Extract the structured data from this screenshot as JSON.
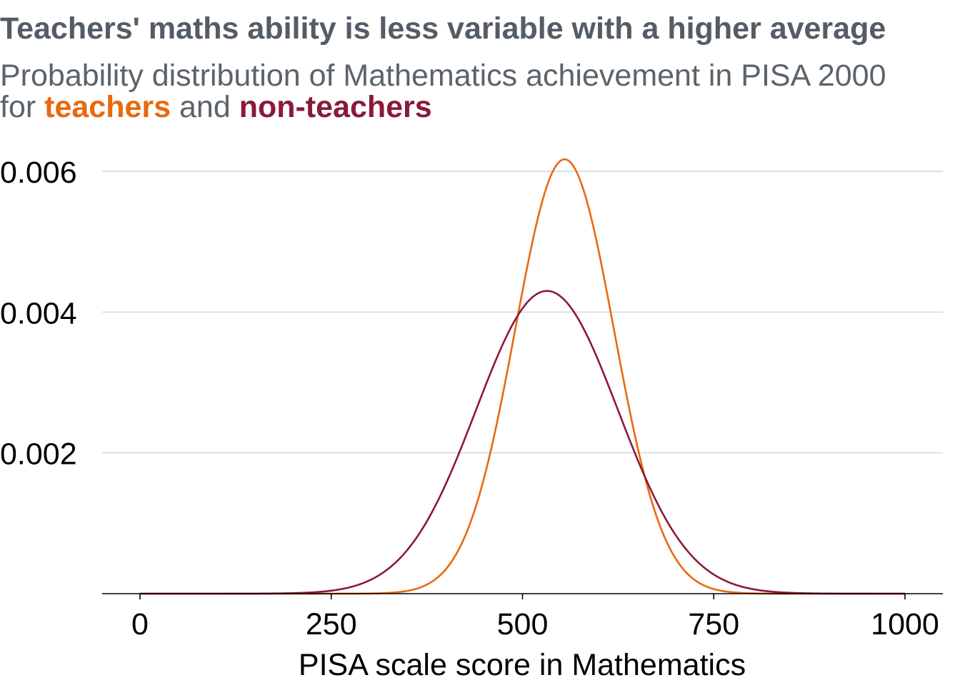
{
  "header": {
    "title": "Teachers' maths ability is less variable with a higher average",
    "subtitle_line1": "Probability distribution of Mathematics achievement in PISA 2000",
    "subtitle_pre": "for ",
    "subtitle_mid": " and ",
    "teachers_label": "teachers",
    "nonteachers_label": "non-teachers"
  },
  "colors": {
    "teachers": "#e8690e",
    "non_teachers": "#8b1a38",
    "grid": "#cccccc",
    "axis": "#000000"
  },
  "chart_data": {
    "type": "line",
    "title": "Teachers' maths ability is less variable with a higher average",
    "xlabel": "PISA scale score in Mathematics",
    "ylabel": "",
    "xlim": [
      -25,
      1050
    ],
    "ylim": [
      0,
      0.0064
    ],
    "x_ticks": [
      0,
      250,
      500,
      750,
      1000
    ],
    "x_tick_labels": [
      "0",
      "250",
      "500",
      "750",
      "1000"
    ],
    "y_ticks": [
      0.002,
      0.004,
      0.006
    ],
    "y_tick_labels": [
      "0.002",
      "0.004",
      "0.006"
    ],
    "grid": "horizontal",
    "series": [
      {
        "name": "teachers",
        "distribution": "normal",
        "mean": 555,
        "sd": 64.7,
        "peak_density": 0.00617
      },
      {
        "name": "non-teachers",
        "distribution": "normal",
        "mean": 532,
        "sd": 92.8,
        "peak_density": 0.0043
      }
    ]
  }
}
